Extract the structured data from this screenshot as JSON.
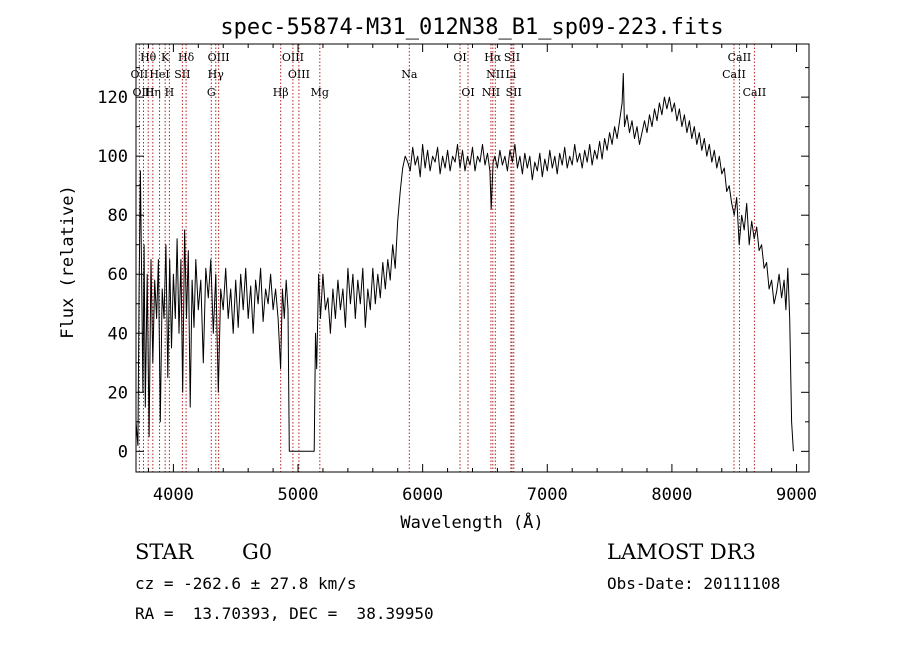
{
  "chart_data": {
    "type": "line",
    "title": "spec-55874-M31_012N38_B1_sp09-223.fits",
    "xlabel": "Wavelength (Å)",
    "ylabel": "Flux (relative)",
    "xlim": [
      3700,
      9100
    ],
    "ylim": [
      -7,
      138
    ],
    "xticks": [
      4000,
      5000,
      6000,
      7000,
      8000,
      9000
    ],
    "yticks": [
      0,
      20,
      40,
      60,
      80,
      100,
      120
    ],
    "series": [
      {
        "name": "flux",
        "points": [
          [
            3700,
            10
          ],
          [
            3715,
            2
          ],
          [
            3725,
            55
          ],
          [
            3735,
            95
          ],
          [
            3745,
            60
          ],
          [
            3755,
            20
          ],
          [
            3765,
            70
          ],
          [
            3775,
            15
          ],
          [
            3790,
            60
          ],
          [
            3805,
            5
          ],
          [
            3820,
            65
          ],
          [
            3835,
            30
          ],
          [
            3850,
            58
          ],
          [
            3865,
            45
          ],
          [
            3880,
            65
          ],
          [
            3895,
            10
          ],
          [
            3910,
            55
          ],
          [
            3925,
            45
          ],
          [
            3940,
            70
          ],
          [
            3955,
            25
          ],
          [
            3970,
            65
          ],
          [
            3985,
            35
          ],
          [
            4000,
            60
          ],
          [
            4015,
            45
          ],
          [
            4030,
            72
          ],
          [
            4045,
            40
          ],
          [
            4060,
            65
          ],
          [
            4075,
            20
          ],
          [
            4090,
            75
          ],
          [
            4105,
            45
          ],
          [
            4120,
            68
          ],
          [
            4135,
            15
          ],
          [
            4150,
            58
          ],
          [
            4165,
            42
          ],
          [
            4180,
            65
          ],
          [
            4200,
            48
          ],
          [
            4220,
            58
          ],
          [
            4240,
            30
          ],
          [
            4260,
            62
          ],
          [
            4280,
            52
          ],
          [
            4300,
            65
          ],
          [
            4320,
            40
          ],
          [
            4340,
            60
          ],
          [
            4360,
            20
          ],
          [
            4380,
            55
          ],
          [
            4400,
            48
          ],
          [
            4420,
            62
          ],
          [
            4440,
            45
          ],
          [
            4460,
            55
          ],
          [
            4480,
            40
          ],
          [
            4500,
            58
          ],
          [
            4520,
            42
          ],
          [
            4540,
            60
          ],
          [
            4560,
            48
          ],
          [
            4580,
            62
          ],
          [
            4600,
            45
          ],
          [
            4620,
            56
          ],
          [
            4640,
            40
          ],
          [
            4660,
            58
          ],
          [
            4680,
            50
          ],
          [
            4700,
            62
          ],
          [
            4720,
            44
          ],
          [
            4740,
            55
          ],
          [
            4760,
            50
          ],
          [
            4780,
            60
          ],
          [
            4800,
            48
          ],
          [
            4820,
            55
          ],
          [
            4840,
            45
          ],
          [
            4860,
            28
          ],
          [
            4875,
            55
          ],
          [
            4890,
            45
          ],
          [
            4905,
            58
          ],
          [
            4920,
            48
          ],
          [
            4930,
            0
          ],
          [
            5000,
            0
          ],
          [
            5070,
            0
          ],
          [
            5130,
            0
          ],
          [
            5140,
            40
          ],
          [
            5150,
            28
          ],
          [
            5165,
            60
          ],
          [
            5180,
            45
          ],
          [
            5200,
            60
          ],
          [
            5220,
            48
          ],
          [
            5240,
            52
          ],
          [
            5260,
            40
          ],
          [
            5280,
            55
          ],
          [
            5300,
            45
          ],
          [
            5320,
            58
          ],
          [
            5340,
            48
          ],
          [
            5360,
            55
          ],
          [
            5380,
            42
          ],
          [
            5400,
            62
          ],
          [
            5420,
            50
          ],
          [
            5440,
            60
          ],
          [
            5460,
            45
          ],
          [
            5480,
            58
          ],
          [
            5500,
            50
          ],
          [
            5520,
            62
          ],
          [
            5540,
            42
          ],
          [
            5560,
            55
          ],
          [
            5580,
            48
          ],
          [
            5600,
            62
          ],
          [
            5620,
            50
          ],
          [
            5640,
            60
          ],
          [
            5660,
            52
          ],
          [
            5680,
            64
          ],
          [
            5700,
            55
          ],
          [
            5720,
            65
          ],
          [
            5740,
            58
          ],
          [
            5760,
            70
          ],
          [
            5780,
            62
          ],
          [
            5800,
            78
          ],
          [
            5820,
            88
          ],
          [
            5840,
            96
          ],
          [
            5860,
            100
          ],
          [
            5880,
            98
          ],
          [
            5900,
            95
          ],
          [
            5920,
            103
          ],
          [
            5940,
            97
          ],
          [
            5960,
            100
          ],
          [
            5980,
            93
          ],
          [
            6000,
            104
          ],
          [
            6020,
            96
          ],
          [
            6040,
            102
          ],
          [
            6060,
            95
          ],
          [
            6080,
            100
          ],
          [
            6100,
            98
          ],
          [
            6120,
            103
          ],
          [
            6140,
            94
          ],
          [
            6160,
            100
          ],
          [
            6180,
            96
          ],
          [
            6200,
            102
          ],
          [
            6220,
            95
          ],
          [
            6240,
            100
          ],
          [
            6260,
            98
          ],
          [
            6280,
            104
          ],
          [
            6300,
            96
          ],
          [
            6320,
            102
          ],
          [
            6340,
            95
          ],
          [
            6360,
            100
          ],
          [
            6380,
            97
          ],
          [
            6400,
            103
          ],
          [
            6420,
            95
          ],
          [
            6440,
            100
          ],
          [
            6460,
            98
          ],
          [
            6480,
            104
          ],
          [
            6500,
            97
          ],
          [
            6520,
            101
          ],
          [
            6540,
            95
          ],
          [
            6550,
            82
          ],
          [
            6565,
            98
          ],
          [
            6580,
            100
          ],
          [
            6600,
            96
          ],
          [
            6620,
            102
          ],
          [
            6640,
            97
          ],
          [
            6660,
            100
          ],
          [
            6680,
            95
          ],
          [
            6700,
            102
          ],
          [
            6720,
            98
          ],
          [
            6740,
            104
          ],
          [
            6760,
            96
          ],
          [
            6780,
            100
          ],
          [
            6800,
            94
          ],
          [
            6820,
            101
          ],
          [
            6840,
            96
          ],
          [
            6860,
            100
          ],
          [
            6880,
            92
          ],
          [
            6900,
            98
          ],
          [
            6920,
            95
          ],
          [
            6940,
            101
          ],
          [
            6960,
            93
          ],
          [
            6980,
            99
          ],
          [
            7000,
            95
          ],
          [
            7020,
            102
          ],
          [
            7040,
            96
          ],
          [
            7060,
            100
          ],
          [
            7080,
            94
          ],
          [
            7100,
            101
          ],
          [
            7120,
            97
          ],
          [
            7140,
            103
          ],
          [
            7160,
            96
          ],
          [
            7180,
            100
          ],
          [
            7200,
            97
          ],
          [
            7220,
            104
          ],
          [
            7240,
            98
          ],
          [
            7260,
            101
          ],
          [
            7280,
            96
          ],
          [
            7300,
            102
          ],
          [
            7320,
            98
          ],
          [
            7340,
            104
          ],
          [
            7360,
            97
          ],
          [
            7380,
            102
          ],
          [
            7400,
            99
          ],
          [
            7420,
            105
          ],
          [
            7440,
            99
          ],
          [
            7460,
            106
          ],
          [
            7480,
            102
          ],
          [
            7500,
            108
          ],
          [
            7520,
            104
          ],
          [
            7540,
            110
          ],
          [
            7560,
            106
          ],
          [
            7580,
            112
          ],
          [
            7600,
            118
          ],
          [
            7610,
            128
          ],
          [
            7620,
            110
          ],
          [
            7640,
            114
          ],
          [
            7660,
            108
          ],
          [
            7680,
            112
          ],
          [
            7700,
            106
          ],
          [
            7720,
            110
          ],
          [
            7740,
            104
          ],
          [
            7760,
            108
          ],
          [
            7780,
            112
          ],
          [
            7800,
            108
          ],
          [
            7820,
            114
          ],
          [
            7840,
            110
          ],
          [
            7860,
            116
          ],
          [
            7880,
            112
          ],
          [
            7900,
            118
          ],
          [
            7920,
            114
          ],
          [
            7940,
            120
          ],
          [
            7960,
            116
          ],
          [
            7980,
            120
          ],
          [
            8000,
            115
          ],
          [
            8020,
            118
          ],
          [
            8040,
            112
          ],
          [
            8060,
            116
          ],
          [
            8080,
            110
          ],
          [
            8100,
            114
          ],
          [
            8120,
            108
          ],
          [
            8140,
            112
          ],
          [
            8160,
            106
          ],
          [
            8180,
            110
          ],
          [
            8200,
            104
          ],
          [
            8220,
            108
          ],
          [
            8240,
            102
          ],
          [
            8260,
            106
          ],
          [
            8280,
            100
          ],
          [
            8300,
            104
          ],
          [
            8320,
            98
          ],
          [
            8340,
            102
          ],
          [
            8360,
            96
          ],
          [
            8380,
            100
          ],
          [
            8400,
            94
          ],
          [
            8420,
            96
          ],
          [
            8440,
            88
          ],
          [
            8460,
            90
          ],
          [
            8480,
            84
          ],
          [
            8500,
            80
          ],
          [
            8520,
            86
          ],
          [
            8540,
            70
          ],
          [
            8560,
            80
          ],
          [
            8580,
            75
          ],
          [
            8600,
            84
          ],
          [
            8620,
            70
          ],
          [
            8640,
            78
          ],
          [
            8660,
            72
          ],
          [
            8680,
            76
          ],
          [
            8700,
            68
          ],
          [
            8720,
            70
          ],
          [
            8740,
            62
          ],
          [
            8760,
            64
          ],
          [
            8780,
            55
          ],
          [
            8800,
            58
          ],
          [
            8820,
            50
          ],
          [
            8840,
            54
          ],
          [
            8860,
            60
          ],
          [
            8880,
            52
          ],
          [
            8900,
            58
          ],
          [
            8915,
            48
          ],
          [
            8930,
            62
          ],
          [
            8945,
            45
          ],
          [
            8960,
            10
          ],
          [
            8975,
            0
          ]
        ]
      }
    ],
    "spectral_lines": [
      {
        "label": "Hθ",
        "x": 3798,
        "row": 0
      },
      {
        "label": "K",
        "x": 3934,
        "row": 0
      },
      {
        "label": "Hδ",
        "x": 4102,
        "row": 0
      },
      {
        "label": "OIII",
        "x": 4363,
        "row": 0
      },
      {
        "label": "OIII",
        "x": 4959,
        "row": 0
      },
      {
        "label": "OI",
        "x": 6300,
        "row": 0
      },
      {
        "label": "Hα",
        "x": 6563,
        "row": 0
      },
      {
        "label": "SII",
        "x": 6717,
        "row": 0
      },
      {
        "label": "CaII",
        "x": 8542,
        "row": 0
      },
      {
        "label": "OII",
        "x": 3727,
        "row": 1
      },
      {
        "label": "HeI",
        "x": 3889,
        "row": 1
      },
      {
        "label": "SII",
        "x": 4072,
        "row": 1
      },
      {
        "label": "Hγ",
        "x": 4340,
        "row": 1
      },
      {
        "label": "OIII",
        "x": 5007,
        "row": 1
      },
      {
        "label": "Na",
        "x": 5893,
        "row": 1
      },
      {
        "label": "NII",
        "x": 6583,
        "row": 1
      },
      {
        "label": "Li",
        "x": 6708,
        "row": 1
      },
      {
        "label": "CaII",
        "x": 8498,
        "row": 1
      },
      {
        "label": "OIII",
        "x": 3760,
        "row": 2
      },
      {
        "label": "Hη",
        "x": 3835,
        "row": 2
      },
      {
        "label": "H",
        "x": 3968,
        "row": 2
      },
      {
        "label": "G",
        "x": 4304,
        "row": 2
      },
      {
        "label": "Hβ",
        "x": 4861,
        "row": 2
      },
      {
        "label": "Mg",
        "x": 5175,
        "row": 2
      },
      {
        "label": "OI",
        "x": 6364,
        "row": 2
      },
      {
        "label": "NII",
        "x": 6548,
        "row": 2
      },
      {
        "label": "SII",
        "x": 6731,
        "row": 2
      },
      {
        "label": "CaII",
        "x": 8662,
        "row": 2
      }
    ]
  },
  "info": {
    "class": "STAR",
    "subclass": "G0",
    "survey": "LAMOST DR3",
    "cz": "cz = -262.6 ± 27.8 km/s",
    "obsdate": "Obs-Date: 20111108",
    "radec": "RA =  13.70393, DEC =  38.39950"
  }
}
